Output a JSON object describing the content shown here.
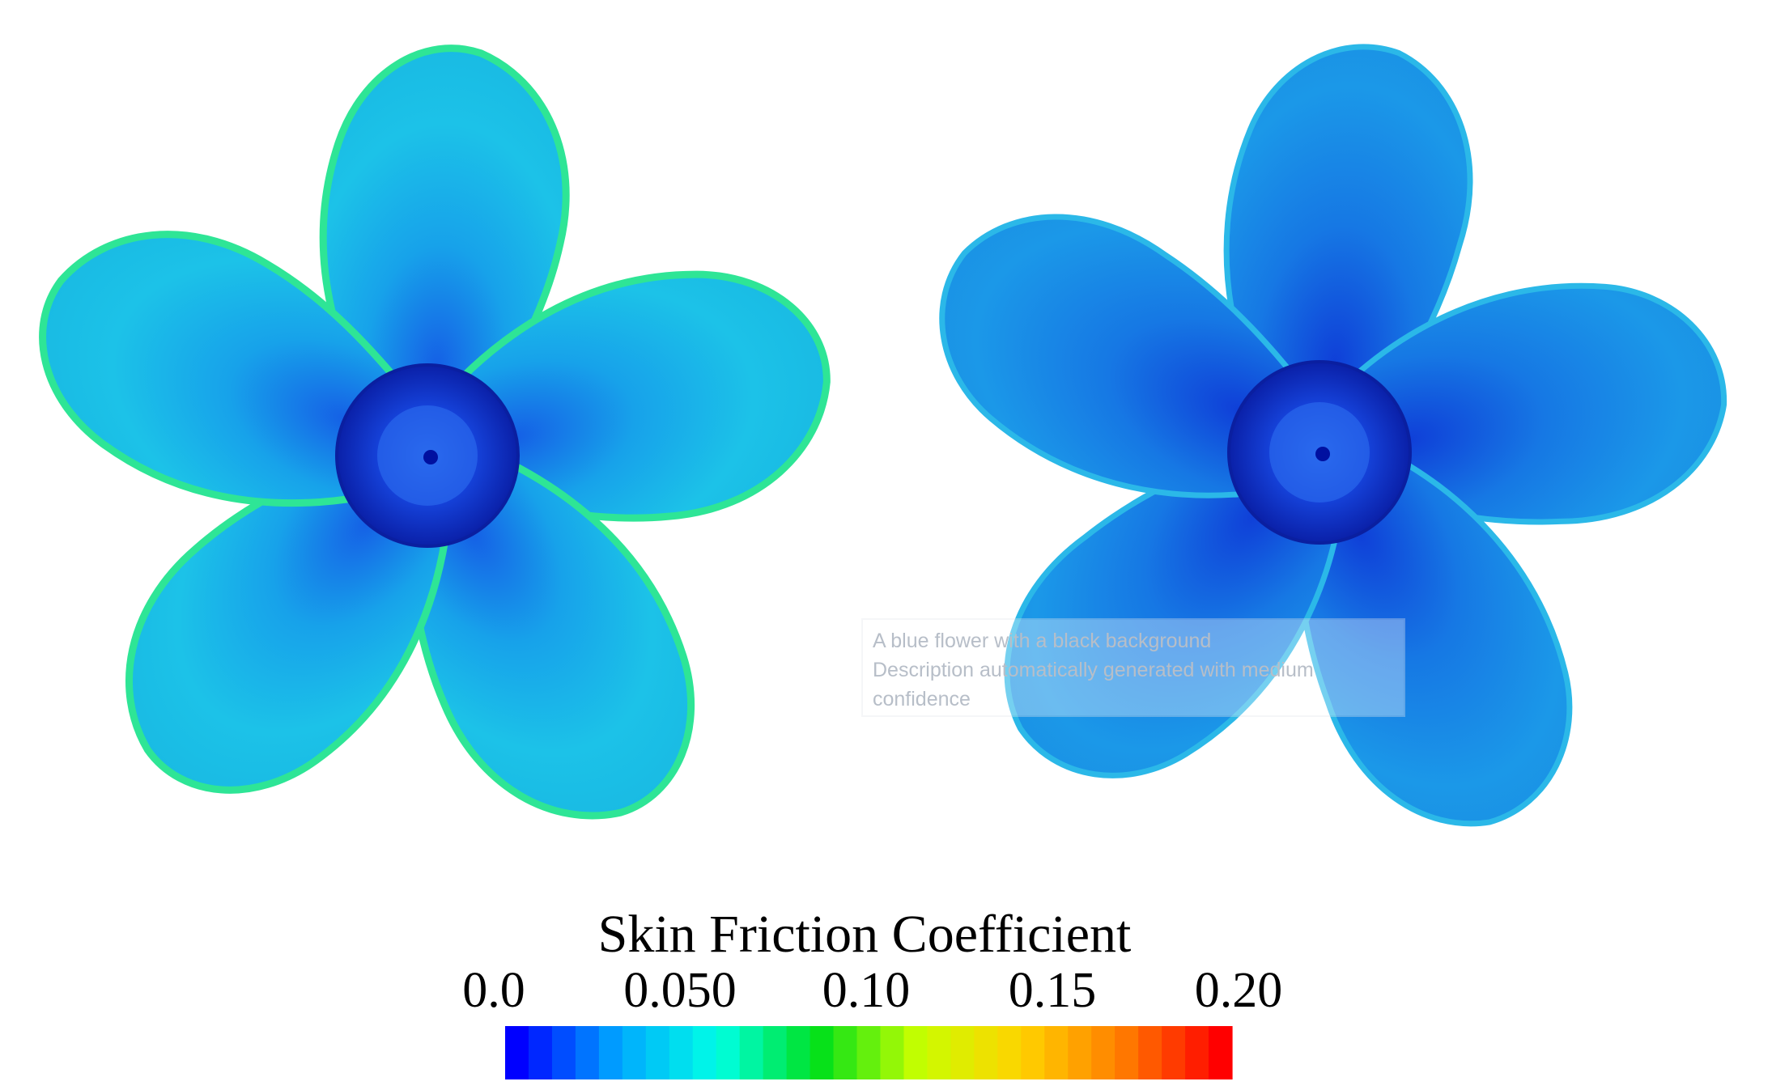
{
  "figure": {
    "alt_text_lines": [
      "A blue flower with a black background",
      "Description automatically generated with medium",
      "confidence"
    ],
    "colorbar": {
      "title": "Skin Friction Coefficient",
      "ticks": [
        {
          "label": "0.0",
          "value": 0.0
        },
        {
          "label": "0.050",
          "value": 0.05
        },
        {
          "label": "0.10",
          "value": 0.1
        },
        {
          "label": "0.15",
          "value": 0.15
        },
        {
          "label": "0.20",
          "value": 0.2
        }
      ],
      "range": [
        0.0,
        0.2
      ],
      "segments": 31,
      "colormap": [
        "#0000ff",
        "#00a6ff",
        "#00ffe6",
        "#00e01a",
        "#c8ff00",
        "#ffd400",
        "#ff7f00",
        "#ff0000"
      ]
    },
    "propellers": [
      {
        "name": "left-propeller",
        "blade_count": 5,
        "blade_color": "#1fb6e6",
        "blade_edge_color": "#2ee596",
        "hub_color": "#0a2dc8"
      },
      {
        "name": "right-propeller",
        "blade_count": 5,
        "blade_color": "#1a8ee6",
        "blade_edge_color": "#2bb8e8",
        "hub_color": "#0a2dc8"
      }
    ]
  }
}
